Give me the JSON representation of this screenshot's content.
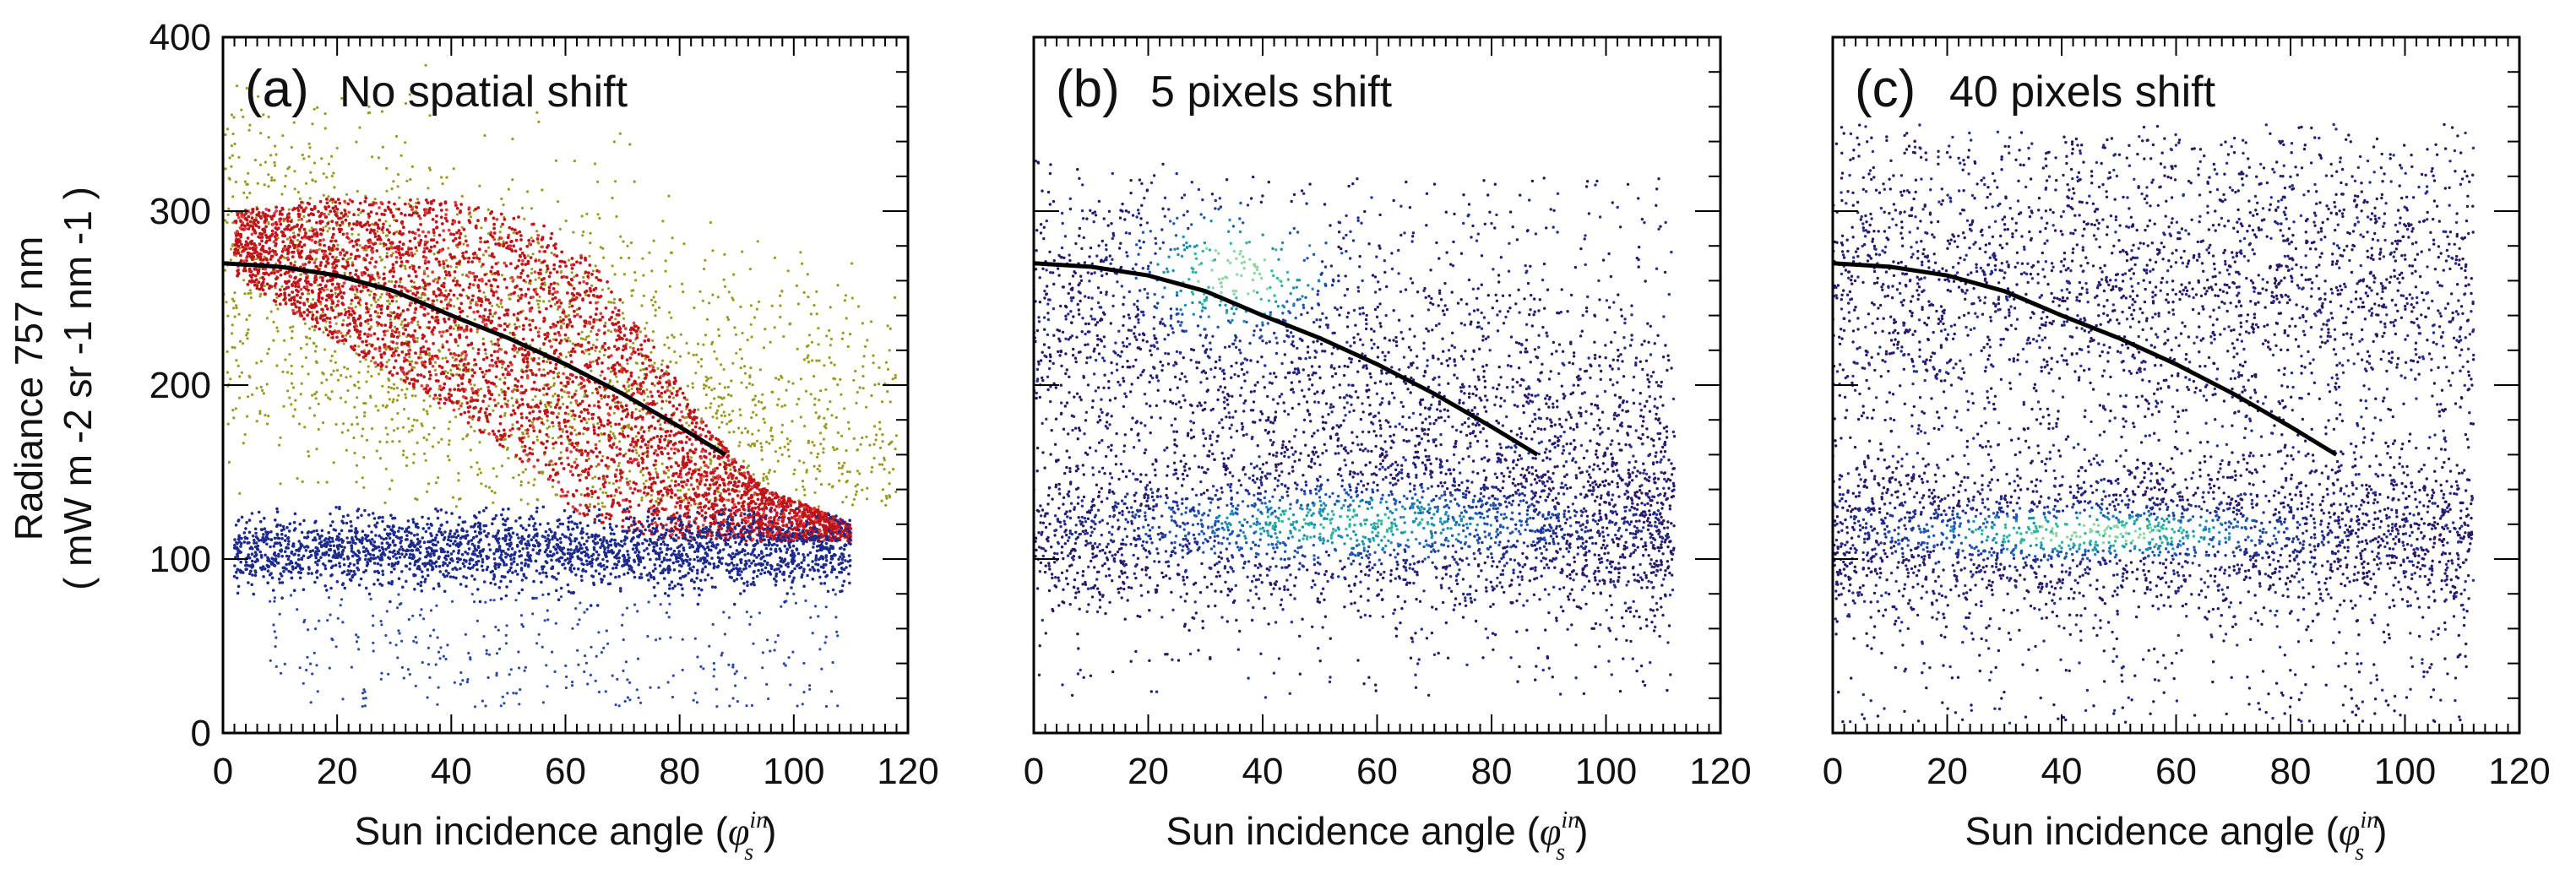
{
  "chart_data": [
    {
      "type": "scatter",
      "panel_label": "(a)",
      "title": "No spatial shift",
      "xlabel": "Sun incidence angle",
      "xlabel_symbol": "φ",
      "xlabel_sup": "in",
      "xlabel_sub": "s",
      "ylabel_line1": "Radiance 757 nm",
      "ylabel_line2": "( mW m -2 sr -1 nm -1 )",
      "xlim": [
        0,
        120
      ],
      "ylim": [
        0,
        400
      ],
      "xticks": [
        0,
        20,
        40,
        60,
        80,
        100,
        120
      ],
      "yticks": [
        0,
        100,
        200,
        300,
        400
      ],
      "series": [
        {
          "name": "olive cloud",
          "color": "#9a9a1e",
          "x_range": [
            0,
            120
          ],
          "y_range": [
            40,
            380
          ]
        },
        {
          "name": "red cluster",
          "color": "#c0141a",
          "upper_boundary": [
            [
              3,
              300
            ],
            [
              20,
              308
            ],
            [
              40,
              306
            ],
            [
              55,
              295
            ],
            [
              65,
              270
            ],
            [
              75,
              225
            ],
            [
              85,
              175
            ],
            [
              95,
              140
            ],
            [
              105,
              128
            ],
            [
              110,
              120
            ]
          ],
          "lower_boundary": [
            [
              3,
              260
            ],
            [
              20,
              225
            ],
            [
              40,
              185
            ],
            [
              55,
              150
            ],
            [
              62,
              125
            ],
            [
              75,
              112
            ],
            [
              95,
              110
            ],
            [
              110,
              110
            ]
          ]
        },
        {
          "name": "blue cluster",
          "color": "#1c2a8c",
          "x_range": [
            2,
            110
          ],
          "y_range": [
            70,
            130
          ]
        },
        {
          "name": "scattered low points",
          "color": "#2a4aa8",
          "x_range": [
            10,
            110
          ],
          "y_range": [
            15,
            80
          ]
        }
      ],
      "fit_curve": {
        "color": "#000000",
        "x": [
          0,
          10,
          20,
          30,
          40,
          50,
          60,
          70,
          80,
          88
        ],
        "y": [
          270,
          268,
          263,
          254,
          240,
          227,
          212,
          195,
          176,
          160
        ]
      }
    },
    {
      "type": "scatter",
      "panel_label": "(b)",
      "title": "5 pixels shift",
      "xlabel": "Sun incidence angle",
      "xlabel_symbol": "φ",
      "xlabel_sup": "in",
      "xlabel_sub": "s",
      "xlim": [
        0,
        120
      ],
      "ylim": [
        0,
        400
      ],
      "xticks": [
        0,
        20,
        40,
        60,
        80,
        100,
        120
      ],
      "yticks": [
        0,
        100,
        200,
        300,
        400
      ],
      "series": [
        {
          "name": "density scatter",
          "colormap": [
            "#2a1a6e",
            "#1e4fb0",
            "#1fa0a0",
            "#7fd0a0"
          ],
          "x_range": [
            0,
            112
          ],
          "y_range": [
            20,
            330
          ]
        }
      ],
      "fit_curve": {
        "color": "#000000",
        "x": [
          0,
          10,
          20,
          30,
          40,
          50,
          60,
          70,
          80,
          88
        ],
        "y": [
          270,
          268,
          263,
          254,
          240,
          227,
          212,
          195,
          176,
          160
        ]
      }
    },
    {
      "type": "scatter",
      "panel_label": "(c)",
      "title": "40 pixels shift",
      "xlabel": "Sun incidence angle",
      "xlabel_symbol": "φ",
      "xlabel_sup": "in",
      "xlabel_sub": "s",
      "xlim": [
        0,
        120
      ],
      "ylim": [
        0,
        400
      ],
      "xticks": [
        0,
        20,
        40,
        60,
        80,
        100,
        120
      ],
      "yticks": [
        0,
        100,
        200,
        300,
        400
      ],
      "series": [
        {
          "name": "density scatter",
          "colormap": [
            "#2a1a6e",
            "#1e4fb0",
            "#1fa0a0",
            "#7fd0a0"
          ],
          "x_range": [
            0,
            112
          ],
          "y_range": [
            5,
            350
          ]
        }
      ],
      "fit_curve": {
        "color": "#000000",
        "x": [
          0,
          10,
          20,
          30,
          40,
          50,
          60,
          70,
          80,
          88
        ],
        "y": [
          270,
          268,
          263,
          254,
          240,
          227,
          212,
          195,
          176,
          160
        ]
      }
    }
  ]
}
